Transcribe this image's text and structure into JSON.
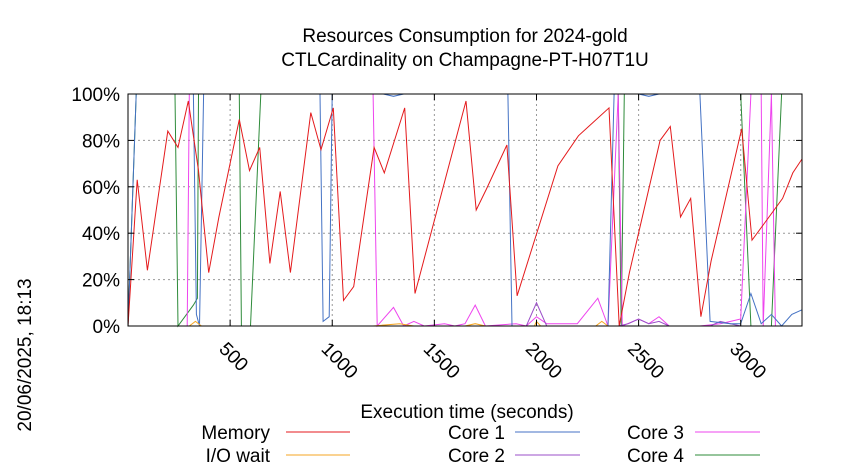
{
  "chart_data": {
    "type": "line",
    "title_line1": "Resources Consumption for 2024-gold",
    "title_line2": "CTLCardinality on Champagne-PT-H07T1U",
    "xlabel": "Execution time (seconds)",
    "ylabel": "",
    "side_label": "20/06/2025, 18:13",
    "xlim": [
      0,
      3300
    ],
    "ylim": [
      0,
      100
    ],
    "xticks": [
      500,
      1000,
      1500,
      2000,
      2500,
      3000
    ],
    "yticks": [
      0,
      20,
      40,
      60,
      80,
      100
    ],
    "ytick_labels": [
      "0%",
      "20%",
      "40%",
      "60%",
      "80%",
      "100%"
    ],
    "grid": true,
    "legend_placement": "bottom",
    "series": [
      {
        "name": "Memory",
        "color": "#e41a1c",
        "points": [
          [
            0,
            0
          ],
          [
            45,
            63
          ],
          [
            95,
            24
          ],
          [
            195,
            84
          ],
          [
            245,
            77
          ],
          [
            295,
            97
          ],
          [
            345,
            67
          ],
          [
            395,
            23
          ],
          [
            445,
            47
          ],
          [
            545,
            89
          ],
          [
            595,
            67
          ],
          [
            645,
            77
          ],
          [
            695,
            27
          ],
          [
            745,
            58
          ],
          [
            795,
            23
          ],
          [
            895,
            92
          ],
          [
            945,
            76
          ],
          [
            1005,
            94
          ],
          [
            1055,
            11
          ],
          [
            1105,
            17
          ],
          [
            1205,
            77
          ],
          [
            1255,
            66
          ],
          [
            1355,
            94
          ],
          [
            1405,
            14
          ],
          [
            1655,
            97
          ],
          [
            1705,
            50
          ],
          [
            1755,
            59
          ],
          [
            1855,
            78
          ],
          [
            1905,
            13
          ],
          [
            2105,
            69
          ],
          [
            2205,
            82
          ],
          [
            2355,
            94
          ],
          [
            2405,
            0
          ],
          [
            2455,
            23
          ],
          [
            2605,
            80
          ],
          [
            2655,
            86
          ],
          [
            2705,
            47
          ],
          [
            2755,
            55
          ],
          [
            2805,
            4
          ],
          [
            2855,
            28
          ],
          [
            3005,
            85
          ],
          [
            3055,
            37
          ],
          [
            3205,
            55
          ],
          [
            3255,
            66
          ],
          [
            3300,
            72
          ]
        ]
      },
      {
        "name": "I/O wait",
        "color": "#f5a623",
        "points": [
          [
            0,
            0
          ],
          [
            300,
            0
          ],
          [
            330,
            2
          ],
          [
            360,
            0
          ],
          [
            1200,
            0
          ],
          [
            1330,
            1
          ],
          [
            1400,
            0
          ],
          [
            1650,
            0
          ],
          [
            1700,
            1
          ],
          [
            1750,
            0
          ],
          [
            1990,
            0
          ],
          [
            2000,
            2
          ],
          [
            2020,
            0
          ],
          [
            2290,
            0
          ],
          [
            2320,
            2
          ],
          [
            2350,
            0
          ],
          [
            3300,
            0
          ]
        ]
      },
      {
        "name": "Core 1",
        "color": "#4472c4",
        "points": [
          [
            0,
            0
          ],
          [
            40,
            100
          ],
          [
            320,
            100
          ],
          [
            335,
            5
          ],
          [
            350,
            0
          ],
          [
            370,
            100
          ],
          [
            940,
            100
          ],
          [
            955,
            2
          ],
          [
            985,
            4
          ],
          [
            1000,
            100
          ],
          [
            1100,
            100
          ],
          [
            1250,
            100
          ],
          [
            1300,
            99
          ],
          [
            1350,
            100
          ],
          [
            1860,
            100
          ],
          [
            1880,
            0
          ],
          [
            1900,
            0
          ],
          [
            2350,
            0
          ],
          [
            2380,
            100
          ],
          [
            2500,
            100
          ],
          [
            2550,
            99
          ],
          [
            2600,
            100
          ],
          [
            2800,
            100
          ],
          [
            2850,
            2
          ],
          [
            2950,
            1
          ],
          [
            3000,
            1
          ],
          [
            3050,
            14
          ],
          [
            3100,
            1
          ],
          [
            3150,
            5
          ],
          [
            3200,
            0
          ],
          [
            3250,
            5
          ],
          [
            3300,
            7
          ]
        ]
      },
      {
        "name": "Core 2",
        "color": "#9b4fc9",
        "points": [
          [
            0,
            0
          ],
          [
            1200,
            0
          ],
          [
            1950,
            0
          ],
          [
            2000,
            10
          ],
          [
            2050,
            0
          ],
          [
            2400,
            0
          ],
          [
            2450,
            1
          ],
          [
            2500,
            3
          ],
          [
            2550,
            1
          ],
          [
            2600,
            2
          ],
          [
            2650,
            0
          ],
          [
            2850,
            0
          ],
          [
            2900,
            2
          ],
          [
            2950,
            1
          ],
          [
            3000,
            0
          ],
          [
            3300,
            0
          ]
        ]
      },
      {
        "name": "Core 3",
        "color": "#ee44ee",
        "points": [
          [
            0,
            0
          ],
          [
            290,
            0
          ],
          [
            300,
            100
          ],
          [
            1200,
            100
          ],
          [
            1220,
            0
          ],
          [
            1300,
            8
          ],
          [
            1350,
            0
          ],
          [
            1400,
            2
          ],
          [
            1450,
            0
          ],
          [
            1550,
            1
          ],
          [
            1600,
            0
          ],
          [
            1650,
            1
          ],
          [
            1700,
            9
          ],
          [
            1750,
            0
          ],
          [
            1900,
            1
          ],
          [
            1950,
            0
          ],
          [
            2000,
            4
          ],
          [
            2050,
            1
          ],
          [
            2200,
            1
          ],
          [
            2300,
            12
          ],
          [
            2350,
            0
          ],
          [
            2400,
            100
          ],
          [
            2420,
            0
          ],
          [
            2500,
            3
          ],
          [
            2550,
            1
          ],
          [
            2600,
            4
          ],
          [
            2650,
            0
          ],
          [
            2800,
            0
          ],
          [
            2900,
            1
          ],
          [
            2950,
            2
          ],
          [
            3000,
            3
          ],
          [
            3050,
            100
          ],
          [
            3100,
            100
          ],
          [
            3110,
            0
          ],
          [
            3150,
            100
          ],
          [
            3170,
            0
          ],
          [
            3200,
            0
          ],
          [
            3300,
            0
          ]
        ]
      },
      {
        "name": "Core 4",
        "color": "#2e8b3a",
        "points": [
          [
            0,
            0
          ],
          [
            40,
            100
          ],
          [
            230,
            100
          ],
          [
            245,
            0
          ],
          [
            320,
            9
          ],
          [
            340,
            12
          ],
          [
            345,
            100
          ],
          [
            545,
            100
          ],
          [
            555,
            0
          ],
          [
            600,
            0
          ],
          [
            650,
            100
          ],
          [
            1200,
            100
          ],
          [
            1300,
            100
          ],
          [
            2400,
            100
          ],
          [
            2415,
            0
          ],
          [
            2430,
            100
          ],
          [
            3000,
            100
          ],
          [
            3050,
            0
          ],
          [
            3150,
            0
          ],
          [
            3200,
            100
          ],
          [
            3300,
            100
          ]
        ]
      }
    ]
  }
}
